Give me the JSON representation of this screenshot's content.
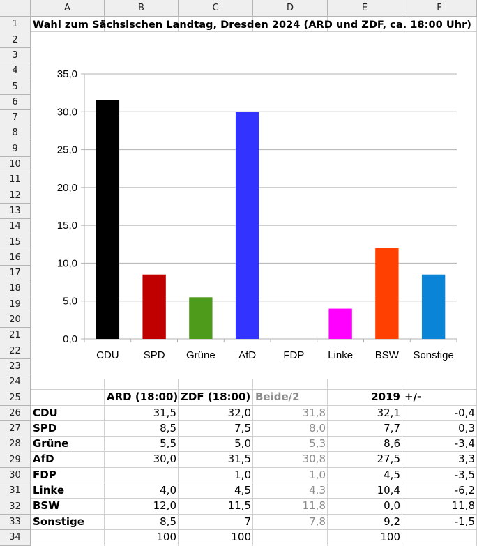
{
  "columns": [
    "A",
    "B",
    "C",
    "D",
    "E",
    "F"
  ],
  "rows": [
    "1",
    "2",
    "3",
    "4",
    "5",
    "6",
    "7",
    "8",
    "9",
    "10",
    "11",
    "12",
    "13",
    "14",
    "15",
    "16",
    "17",
    "18",
    "19",
    "20",
    "21",
    "22",
    "23",
    "24",
    "25",
    "26",
    "27",
    "28",
    "29",
    "30",
    "31",
    "32",
    "33",
    "34"
  ],
  "sheet_title": "Wahl zum Sächsischen Landtag, Dresden 2024 (ARD und ZDF, ca. 18:00 Uhr)",
  "table": {
    "headers": [
      "",
      "ARD (18:00)",
      "ZDF (18:00)",
      "Beide/2",
      "2019",
      "+/-"
    ],
    "rows": [
      [
        "CDU",
        "31,5",
        "32,0",
        "31,8",
        "32,1",
        "-0,4"
      ],
      [
        "SPD",
        "8,5",
        "7,5",
        "8,0",
        "7,7",
        "0,3"
      ],
      [
        "Grüne",
        "5,5",
        "5,0",
        "5,3",
        "8,6",
        "-3,4"
      ],
      [
        "AfD",
        "30,0",
        "31,5",
        "30,8",
        "27,5",
        "3,3"
      ],
      [
        "FDP",
        "",
        "1,0",
        "1,0",
        "4,5",
        "-3,5"
      ],
      [
        "Linke",
        "4,0",
        "4,5",
        "4,3",
        "10,4",
        "-6,2"
      ],
      [
        "BSW",
        "12,0",
        "11,5",
        "11,8",
        "0,0",
        "11,8"
      ],
      [
        "Sonstige",
        "8,5",
        "7",
        "7,8",
        "9,2",
        "-1,5"
      ],
      [
        "",
        "100",
        "100",
        "",
        "100",
        ""
      ]
    ]
  },
  "chart_data": {
    "type": "bar",
    "title": "",
    "xlabel": "",
    "ylabel": "",
    "categories": [
      "CDU",
      "SPD",
      "Grüne",
      "AfD",
      "FDP",
      "Linke",
      "BSW",
      "Sonstige"
    ],
    "values": [
      31.5,
      8.5,
      5.5,
      30.0,
      0,
      4.0,
      12.0,
      8.5
    ],
    "colors": [
      "#000000",
      "#c00000",
      "#4e9a1b",
      "#3333ff",
      "#ffffff",
      "#ff00ff",
      "#ff4000",
      "#0a84d6"
    ],
    "ylim": [
      0,
      35
    ],
    "yticks": [
      "0,0",
      "5,0",
      "10,0",
      "15,0",
      "20,0",
      "25,0",
      "30,0",
      "35,0"
    ],
    "grid": true,
    "legend": "none"
  }
}
